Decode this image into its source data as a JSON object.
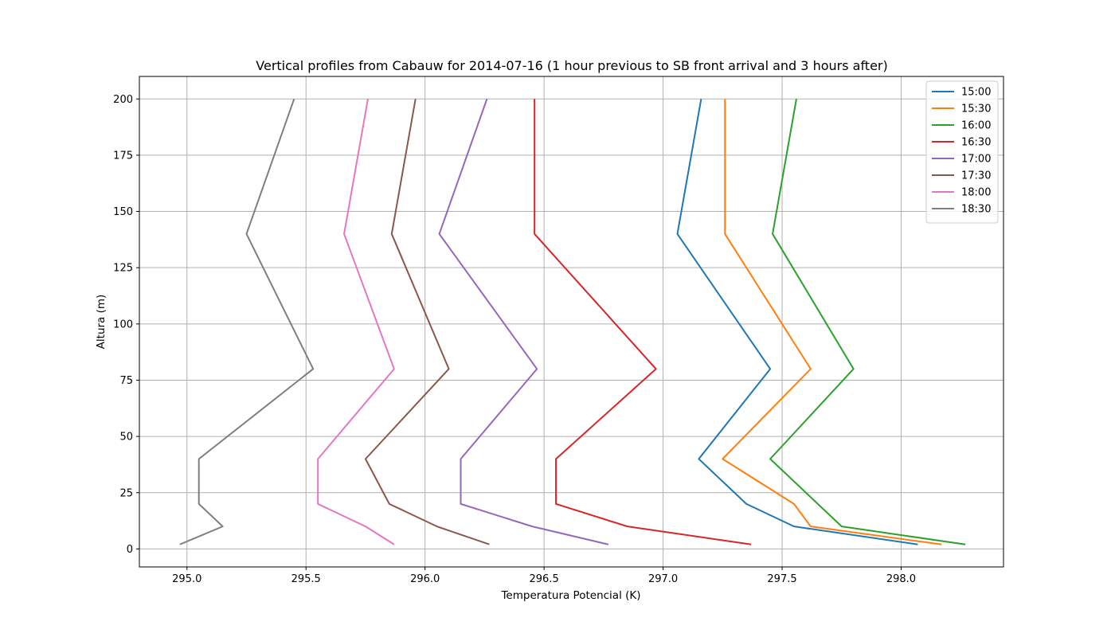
{
  "chart_data": {
    "type": "line",
    "title": "Vertical profiles from Cabauw for 2014-07-16 (1 hour previous to SB front arrival and 3 hours after)",
    "xlabel": "Temperatura Potencial (K)",
    "ylabel": "Altura (m)",
    "xlim": [
      294.8,
      298.43
    ],
    "ylim": [
      -8,
      210
    ],
    "xticks": [
      "295.0",
      "295.5",
      "296.0",
      "296.5",
      "297.0",
      "297.5",
      "298.0"
    ],
    "yticks": [
      "0",
      "25",
      "50",
      "75",
      "100",
      "125",
      "150",
      "175",
      "200"
    ],
    "grid": true,
    "legend_position": "top-right",
    "heights": [
      2,
      10,
      20,
      40,
      80,
      140,
      200
    ],
    "series": [
      {
        "name": "15:00",
        "color": "#1f77b4",
        "x": [
          298.07,
          297.55,
          297.35,
          297.15,
          297.45,
          297.06,
          297.16
        ]
      },
      {
        "name": "15:30",
        "color": "#ff7f0e",
        "x": [
          298.17,
          297.62,
          297.55,
          297.25,
          297.62,
          297.26,
          297.26
        ]
      },
      {
        "name": "16:00",
        "color": "#2ca02c",
        "x": [
          298.27,
          297.75,
          297.65,
          297.45,
          297.8,
          297.46,
          297.56
        ]
      },
      {
        "name": "16:30",
        "color": "#d62728",
        "x": [
          297.37,
          296.85,
          296.55,
          296.55,
          296.97,
          296.46,
          296.46
        ]
      },
      {
        "name": "17:00",
        "color": "#9467bd",
        "x": [
          296.77,
          296.45,
          296.15,
          296.15,
          296.47,
          296.06,
          296.26
        ]
      },
      {
        "name": "17:30",
        "color": "#8c564b",
        "x": [
          296.27,
          296.05,
          295.85,
          295.75,
          296.1,
          295.86,
          295.96
        ]
      },
      {
        "name": "18:00",
        "color": "#e377c2",
        "x": [
          295.87,
          295.75,
          295.55,
          295.55,
          295.87,
          295.66,
          295.76
        ]
      },
      {
        "name": "18:30",
        "color": "#7f7f7f",
        "x": [
          294.97,
          295.15,
          295.05,
          295.05,
          295.53,
          295.25,
          295.45
        ]
      }
    ]
  }
}
